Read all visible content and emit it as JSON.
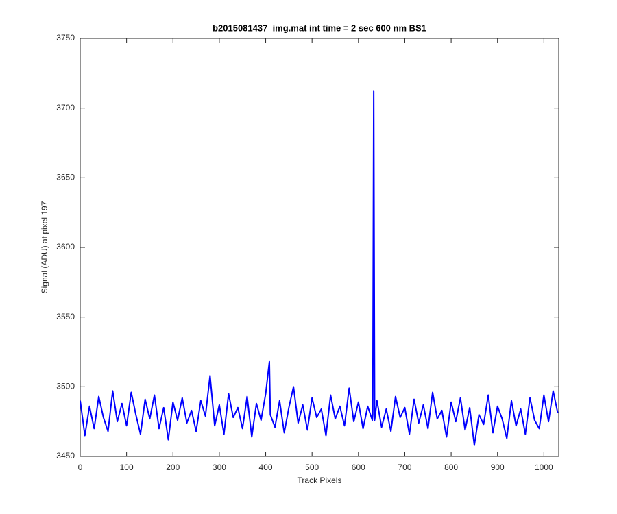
{
  "chart_data": {
    "type": "line",
    "title": "b2015081437_img.mat int time = 2 sec  600 nm BS1",
    "x_label": "Track Pixels",
    "y_label": "Signal (ADU) at pixel 197",
    "xlim": [
      0,
      1032
    ],
    "ylim": [
      3450,
      3750
    ],
    "xticks": [
      0,
      100,
      200,
      300,
      400,
      500,
      600,
      700,
      800,
      900,
      1000
    ],
    "yticks": [
      3450,
      3500,
      3550,
      3600,
      3650,
      3700,
      3750
    ],
    "series": [
      {
        "color": "#0000ff",
        "x": [
          0,
          10,
          20,
          30,
          40,
          50,
          60,
          70,
          80,
          90,
          100,
          110,
          120,
          130,
          140,
          150,
          160,
          170,
          180,
          190,
          200,
          210,
          220,
          230,
          240,
          250,
          260,
          270,
          280,
          290,
          300,
          310,
          320,
          330,
          340,
          350,
          360,
          370,
          380,
          390,
          400,
          408,
          410,
          420,
          430,
          440,
          450,
          460,
          470,
          480,
          490,
          500,
          510,
          520,
          530,
          540,
          550,
          560,
          570,
          580,
          590,
          600,
          610,
          620,
          630,
          631,
          633,
          635,
          640,
          650,
          660,
          670,
          680,
          690,
          700,
          710,
          720,
          730,
          740,
          750,
          760,
          770,
          780,
          790,
          800,
          810,
          820,
          830,
          840,
          850,
          860,
          870,
          880,
          890,
          900,
          910,
          920,
          930,
          940,
          950,
          960,
          970,
          980,
          990,
          1000,
          1010,
          1020,
          1030
        ],
        "values": [
          3490,
          3465,
          3486,
          3470,
          3493,
          3478,
          3468,
          3497,
          3475,
          3488,
          3472,
          3496,
          3480,
          3466,
          3491,
          3477,
          3494,
          3470,
          3485,
          3462,
          3489,
          3476,
          3492,
          3474,
          3483,
          3468,
          3490,
          3479,
          3508,
          3472,
          3487,
          3466,
          3495,
          3478,
          3485,
          3470,
          3493,
          3464,
          3488,
          3476,
          3495,
          3518,
          3480,
          3471,
          3490,
          3467,
          3485,
          3500,
          3474,
          3487,
          3469,
          3492,
          3478,
          3484,
          3465,
          3494,
          3477,
          3486,
          3472,
          3499,
          3475,
          3489,
          3470,
          3486,
          3476,
          3480,
          3712,
          3476,
          3490,
          3471,
          3484,
          3468,
          3493,
          3478,
          3485,
          3466,
          3491,
          3474,
          3487,
          3470,
          3496,
          3477,
          3483,
          3464,
          3489,
          3475,
          3492,
          3469,
          3485,
          3458,
          3480,
          3473,
          3494,
          3467,
          3486,
          3477,
          3463,
          3490,
          3472,
          3484,
          3466,
          3492,
          3476,
          3470,
          3494,
          3475,
          3497,
          3481
        ]
      }
    ]
  }
}
